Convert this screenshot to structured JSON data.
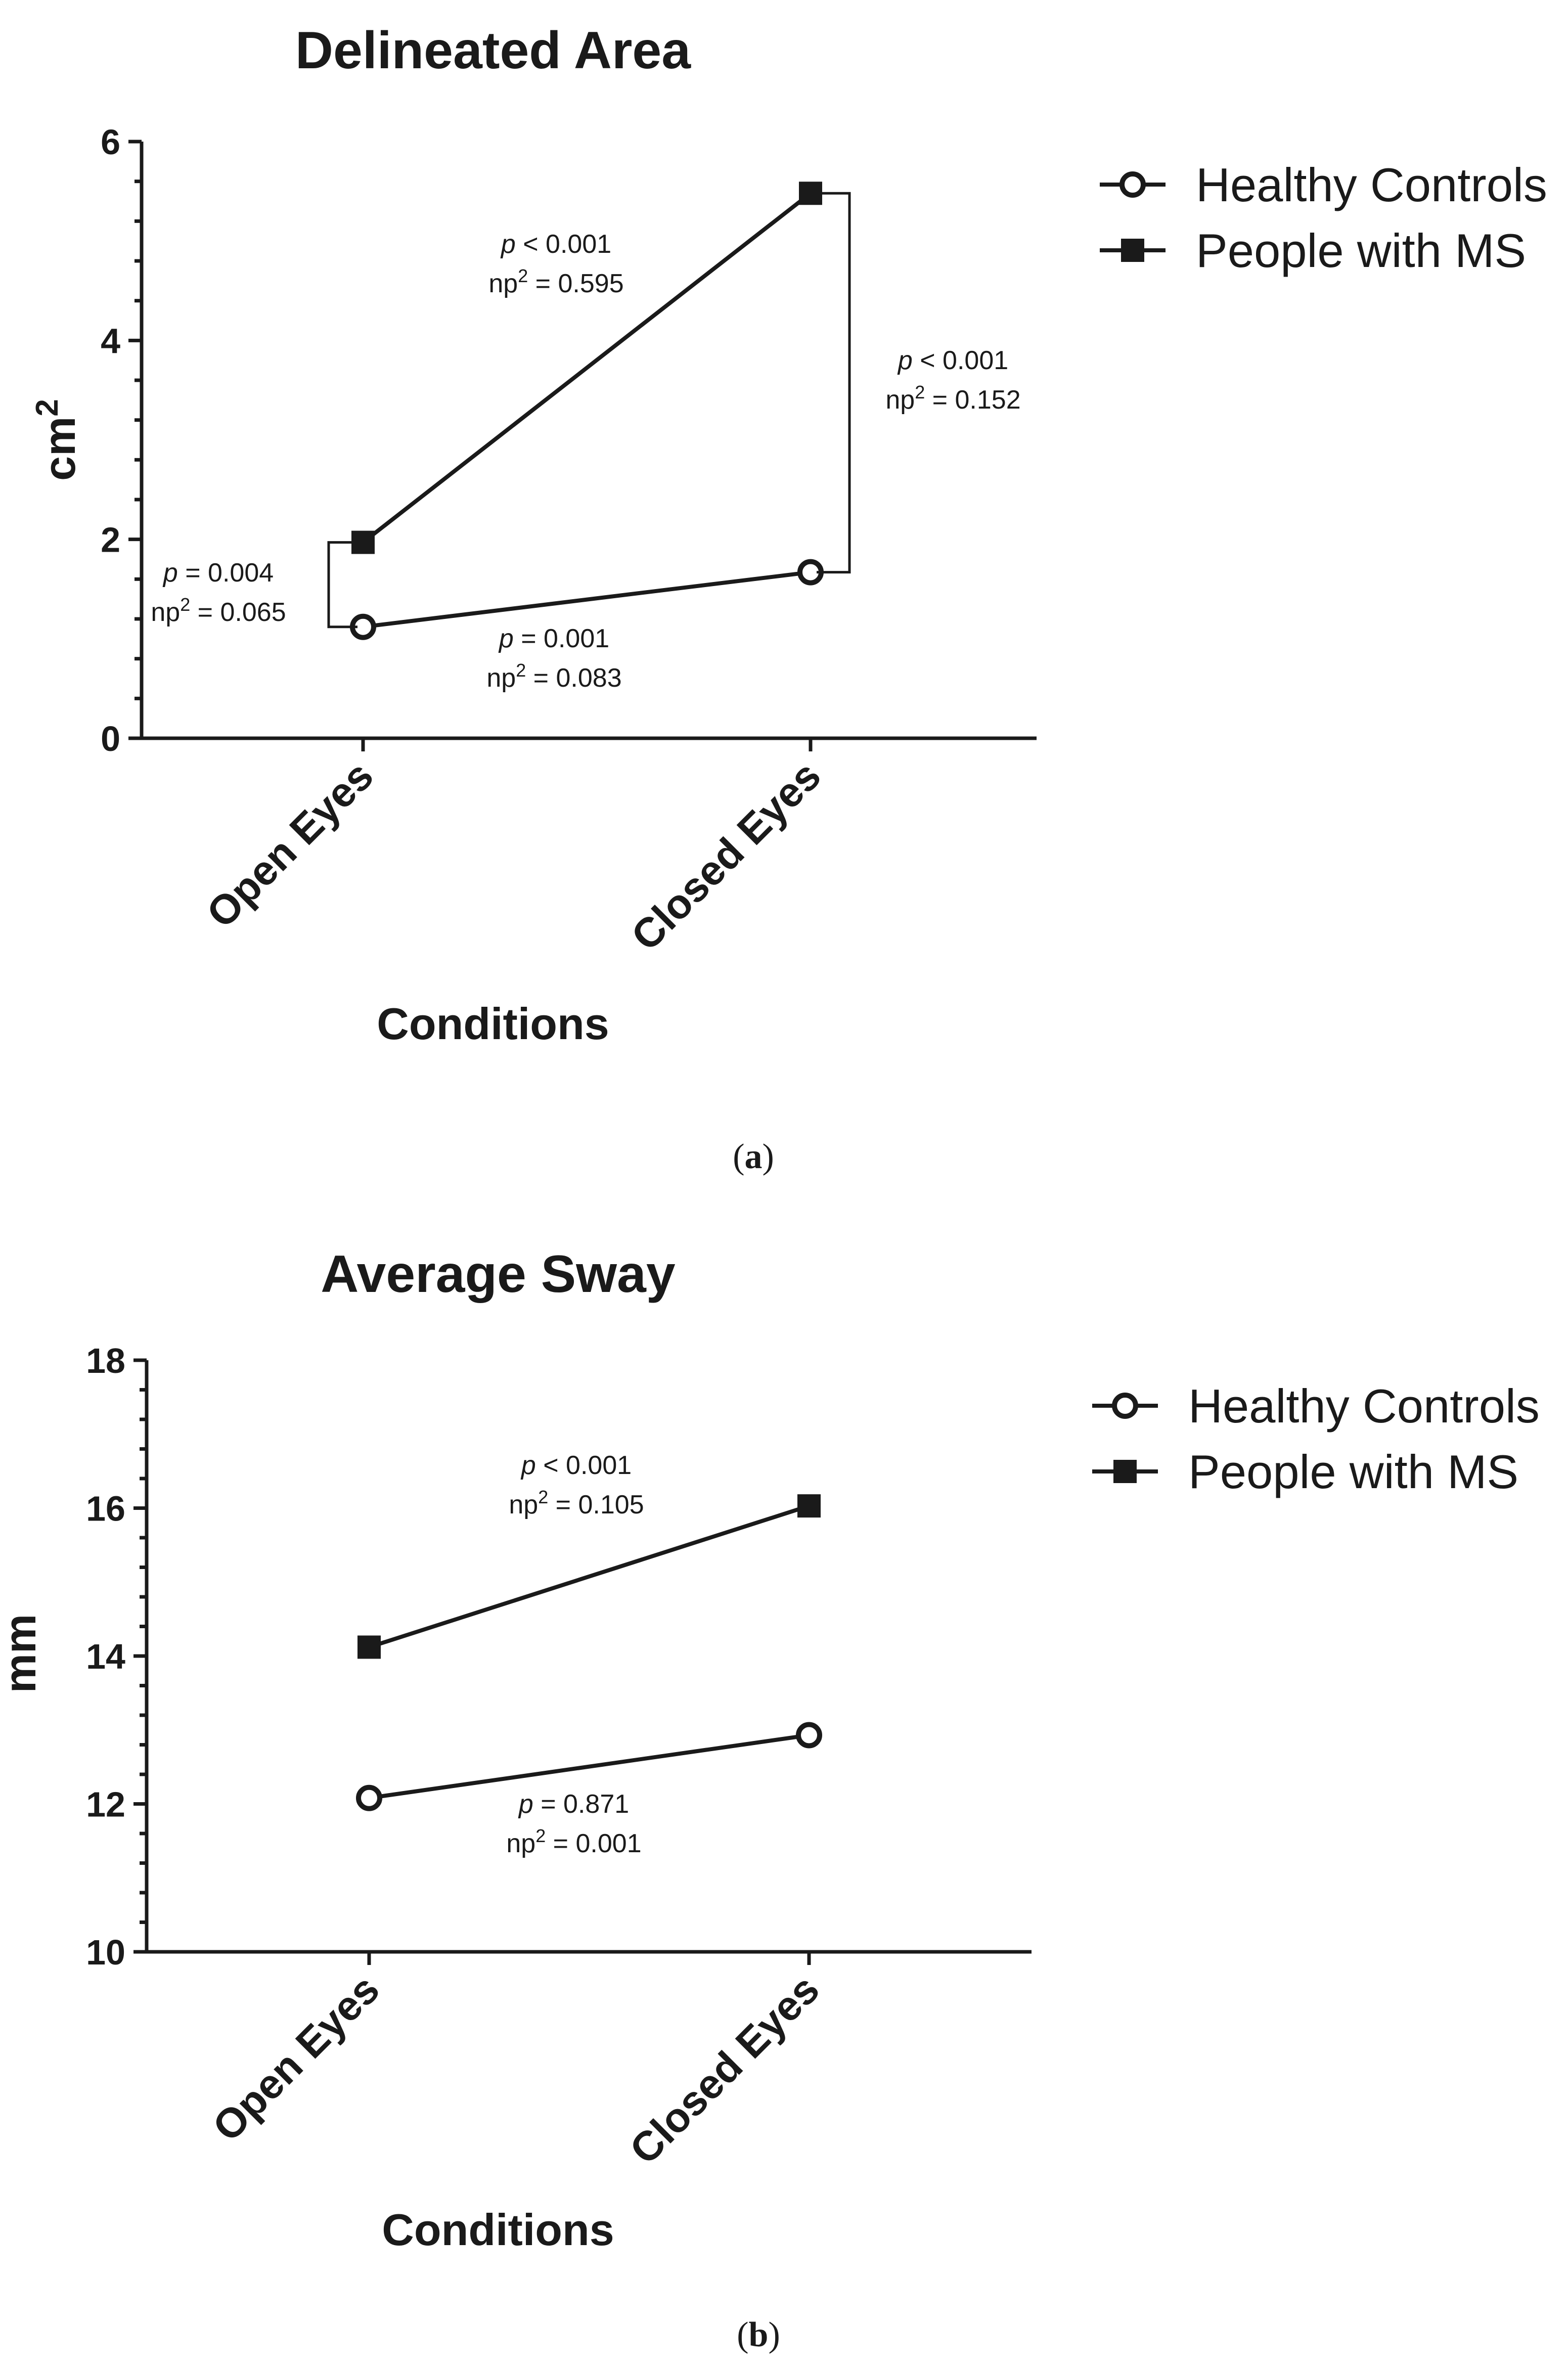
{
  "chart_data": [
    {
      "type": "line",
      "title": "Delineated Area",
      "xlabel": "Conditions",
      "ylabel_base": "cm",
      "ylabel_sup": "2",
      "categories": [
        "Open Eyes",
        "Closed Eyes"
      ],
      "ylim": [
        0,
        6
      ],
      "yticks": [
        "0",
        "2",
        "4",
        "6"
      ],
      "series": [
        {
          "name": "Healthy Controls",
          "marker": "circle",
          "values": [
            1.12,
            1.67
          ]
        },
        {
          "name": "People with MS",
          "marker": "square",
          "values": [
            1.97,
            5.48
          ]
        }
      ],
      "annotations": [
        {
          "p_sym": "p",
          "p_text": " < 0.001",
          "np_base": "np",
          "np_sup": "2",
          "np_text": " =  0.595"
        },
        {
          "p_sym": "p",
          "p_text": " < 0.001",
          "np_base": "np",
          "np_sup": "2",
          "np_text": " =  0.152"
        },
        {
          "p_sym": "p",
          "p_text": " = 0.004",
          "np_base": "np",
          "np_sup": "2",
          "np_text": " = 0.065"
        },
        {
          "p_sym": "p",
          "p_text": " = 0.001",
          "np_base": "np",
          "np_sup": "2",
          "np_text": " =  0.083"
        }
      ],
      "caption_letter": "a"
    },
    {
      "type": "line",
      "title": "Average Sway",
      "xlabel": "Conditions",
      "ylabel_base": "mm",
      "ylabel_sup": "",
      "categories": [
        "Open Eyes",
        "Closed Eyes"
      ],
      "ylim": [
        10,
        18
      ],
      "yticks": [
        "10",
        "12",
        "14",
        "16",
        "18"
      ],
      "series": [
        {
          "name": "Healthy Controls",
          "marker": "circle",
          "values": [
            12.08,
            12.93
          ]
        },
        {
          "name": "People with MS",
          "marker": "square",
          "values": [
            14.12,
            16.03
          ]
        }
      ],
      "annotations": [
        {
          "p_sym": "p",
          "p_text": " < 0.001",
          "np_base": "np",
          "np_sup": "2",
          "np_text": " =  0.105"
        },
        {
          "p_sym": "p",
          "p_text": " = 0.871",
          "np_base": "np",
          "np_sup": "2",
          "np_text": " =  0.001"
        }
      ],
      "caption_letter": "b"
    }
  ]
}
